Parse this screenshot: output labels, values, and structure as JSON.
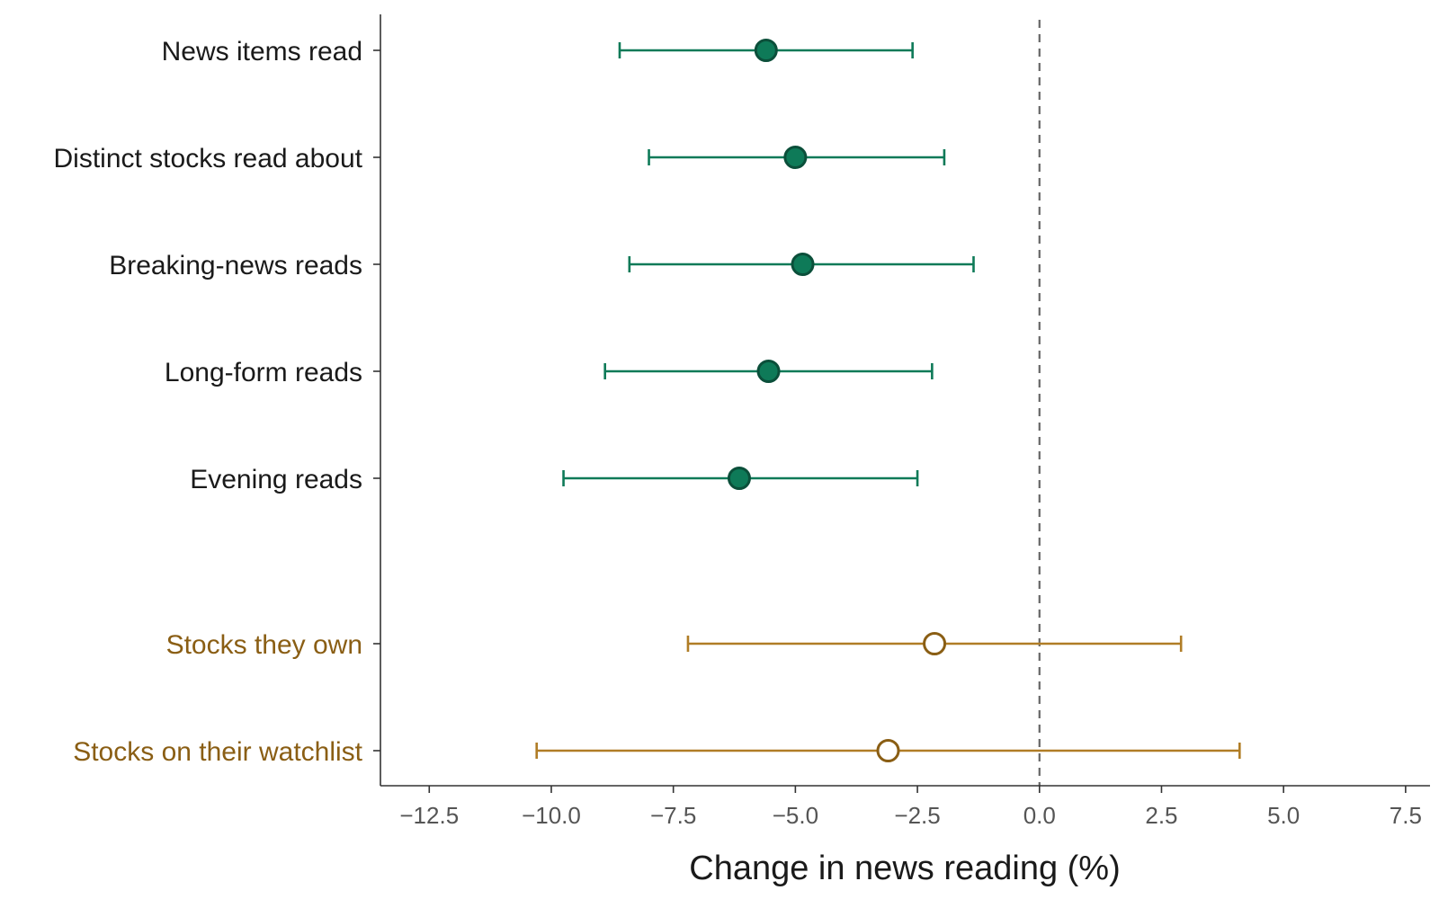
{
  "chart_data": {
    "type": "forest",
    "title": "",
    "xlabel": "Change in news reading (%)",
    "ylabel": "",
    "xlim": [
      -13.5,
      8.0
    ],
    "x_ticks": [
      -12.5,
      -10.0,
      -7.5,
      -5.0,
      -2.5,
      0.0,
      2.5,
      5.0,
      7.5
    ],
    "x_tick_labels": [
      "−12.5",
      "−10.0",
      "−7.5",
      "−5.0",
      "−2.5",
      "0.0",
      "2.5",
      "5.0",
      "7.5"
    ],
    "reference_line": 0.0,
    "grid": false,
    "legend": "none",
    "groups": [
      {
        "color": "#0e7a58",
        "marker_fill": "#0e7a58",
        "marker_stroke": "#0b4f3a",
        "label_color": "#1a1a1a",
        "marker": "filled-circle",
        "items": [
          {
            "label": "News items read",
            "estimate": -5.6,
            "ci_low": -8.6,
            "ci_high": -2.6
          },
          {
            "label": "Distinct stocks read about",
            "estimate": -5.0,
            "ci_low": -8.0,
            "ci_high": -1.95
          },
          {
            "label": "Breaking-news reads",
            "estimate": -4.85,
            "ci_low": -8.4,
            "ci_high": -1.35
          },
          {
            "label": "Long-form reads",
            "estimate": -5.55,
            "ci_low": -8.9,
            "ci_high": -2.2
          },
          {
            "label": "Evening reads",
            "estimate": -6.15,
            "ci_low": -9.75,
            "ci_high": -2.5
          }
        ]
      },
      {
        "color": "#b07d26",
        "marker_fill": "#ffffff",
        "marker_stroke": "#8a5e14",
        "label_color": "#8a5e14",
        "marker": "hollow-circle",
        "items": [
          {
            "label": "Stocks they own",
            "estimate": -2.15,
            "ci_low": -7.2,
            "ci_high": 2.9
          },
          {
            "label": "Stocks on their watchlist",
            "estimate": -3.1,
            "ci_low": -10.3,
            "ci_high": 4.1
          }
        ]
      }
    ]
  }
}
